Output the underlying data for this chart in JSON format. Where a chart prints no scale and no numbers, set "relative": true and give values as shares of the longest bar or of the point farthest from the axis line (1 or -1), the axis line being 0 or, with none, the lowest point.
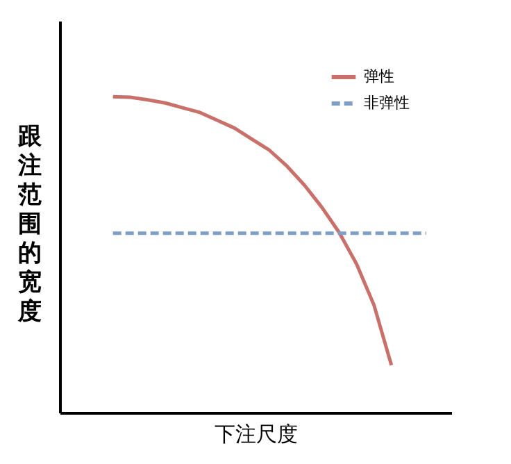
{
  "chart_data": {
    "type": "line",
    "xlabel": "下注尺度",
    "ylabel": "跟注范围的宽度",
    "relative": true,
    "legend": "top right",
    "grid": false,
    "marker": "none",
    "categories": [
      null,
      null,
      null,
      null,
      null,
      null,
      null,
      null,
      null,
      null,
      null,
      null,
      null,
      null,
      null,
      null,
      null,
      null,
      null
    ],
    "series": [
      {
        "name": "弹性",
        "color": "#c9706a",
        "line_style": "solid",
        "values": [
          1.0,
          0.998,
          0.99,
          0.98,
          0.965,
          0.95,
          0.925,
          0.9,
          0.865,
          0.83,
          0.78,
          0.72,
          0.65,
          0.57,
          0.47,
          0.34,
          0.15,
          null,
          null
        ]
      },
      {
        "name": "非弹性",
        "color": "#7f9fc8",
        "line_style": "dashed",
        "values": [
          0.568,
          0.568,
          0.568,
          0.568,
          0.568,
          0.568,
          0.568,
          0.568,
          0.568,
          0.568,
          0.568,
          0.568,
          0.568,
          0.568,
          0.568,
          0.568,
          0.568,
          0.568,
          0.568
        ]
      }
    ]
  }
}
